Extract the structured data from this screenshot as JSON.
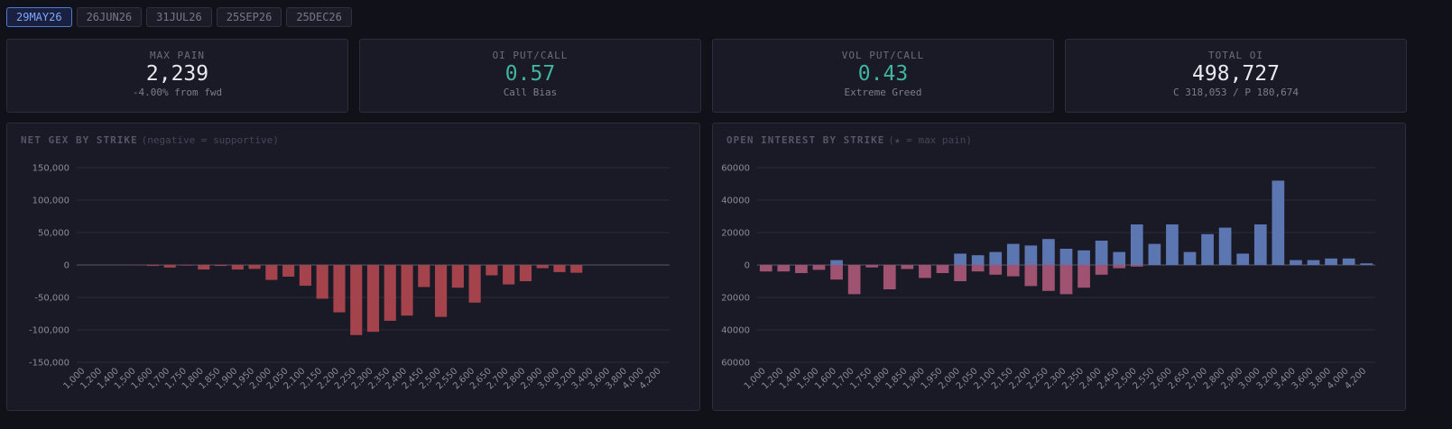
{
  "tabs": [
    "29MAY26",
    "26JUN26",
    "31JUL26",
    "25SEP26",
    "25DEC26"
  ],
  "cards": [
    {
      "label": "MAX PAIN",
      "value": "2,239",
      "sub": "-4.00% from fwd"
    },
    {
      "label": "OI PUT/CALL",
      "value": "0.57",
      "sub": "Call Bias"
    },
    {
      "label": "VOL PUT/CALL",
      "value": "0.43",
      "sub": "Extreme Greed"
    },
    {
      "label": "TOTAL OI",
      "value": "498,727",
      "sub": "C 318,053 / P 180,674"
    }
  ],
  "chart_data": [
    {
      "type": "bar",
      "title": "NET GEX BY STRIKE",
      "subtitle": "(negative = supportive)",
      "categories": [
        "1,000",
        "1,200",
        "1,400",
        "1,500",
        "1,600",
        "1,700",
        "1,750",
        "1,800",
        "1,850",
        "1,900",
        "1,950",
        "2,000",
        "2,050",
        "2,100",
        "2,150",
        "2,200",
        "2,250",
        "2,300",
        "2,350",
        "2,400",
        "2,450",
        "2,500",
        "2,550",
        "2,600",
        "2,650",
        "2,700",
        "2,800",
        "2,900",
        "3,000",
        "3,200",
        "3,400",
        "3,600",
        "3,800",
        "4,000",
        "4,200"
      ],
      "series": [
        {
          "color": "#a4434b",
          "values": [
            0,
            0,
            0,
            -500,
            -1500,
            -4000,
            -1000,
            -7000,
            -1500,
            -7000,
            -6000,
            -23000,
            -18000,
            -32000,
            -52000,
            -73000,
            -108000,
            -103000,
            -86000,
            -78000,
            -34000,
            -80000,
            -35000,
            -58000,
            -16000,
            -30000,
            -25000,
            -5000,
            -11000,
            -12000,
            0,
            0,
            0,
            0,
            0
          ]
        }
      ],
      "ylim": [
        -150000,
        150000
      ],
      "yticks": [
        {
          "value": 150000,
          "label": "150,000"
        },
        {
          "value": 100000,
          "label": "100,000"
        },
        {
          "value": 50000,
          "label": "50,000"
        },
        0,
        {
          "value": -50000,
          "label": "-50,000"
        },
        {
          "value": -100000,
          "label": "-100,000"
        },
        {
          "value": -150000,
          "label": "-150,000"
        }
      ],
      "grid": true
    },
    {
      "type": "bar",
      "title": "OPEN INTEREST BY STRIKE",
      "subtitle": "(★ = max pain)",
      "categories": [
        "1,000",
        "1,200",
        "1,400",
        "1,500",
        "1,600",
        "1,700",
        "1,750",
        "1,800",
        "1,850",
        "1,900",
        "1,950",
        "2,000",
        "2,050",
        "2,100",
        "2,150",
        "2,200",
        "2,250",
        "2,300",
        "2,350",
        "2,400",
        "2,450",
        "2,500",
        "2,550",
        "2,600",
        "2,650",
        "2,700",
        "2,800",
        "2,900",
        "3,000",
        "3,200",
        "3,400",
        "3,600",
        "3,800",
        "4,000",
        "4,200"
      ],
      "series": [
        {
          "color": "#5b76b0",
          "values": [
            0,
            0,
            0,
            0,
            3000,
            0,
            0,
            0,
            0,
            0,
            0,
            7000,
            6000,
            8000,
            13000,
            12000,
            16000,
            10000,
            9000,
            15000,
            8000,
            25000,
            13000,
            25000,
            8000,
            19000,
            23000,
            7000,
            25000,
            52000,
            3000,
            3000,
            4000,
            4000,
            1000
          ]
        },
        {
          "color": "#a05370",
          "values": [
            -4000,
            -4000,
            -5000,
            -3000,
            -9000,
            -18000,
            -1500,
            -15000,
            -2500,
            -8000,
            -5000,
            -10000,
            -4000,
            -6000,
            -7000,
            -13000,
            -16000,
            -18000,
            -14000,
            -6000,
            -2000,
            -1000,
            0,
            0,
            0,
            0,
            0,
            0,
            0,
            0,
            0,
            0,
            0,
            0,
            0
          ]
        }
      ],
      "ylim": [
        -60000,
        60000
      ],
      "yticks": [
        60000,
        40000,
        20000,
        0,
        {
          "value": -20000,
          "label": "20000"
        },
        {
          "value": -40000,
          "label": "40000"
        },
        {
          "value": -60000,
          "label": "60000"
        }
      ],
      "grid": true
    }
  ]
}
